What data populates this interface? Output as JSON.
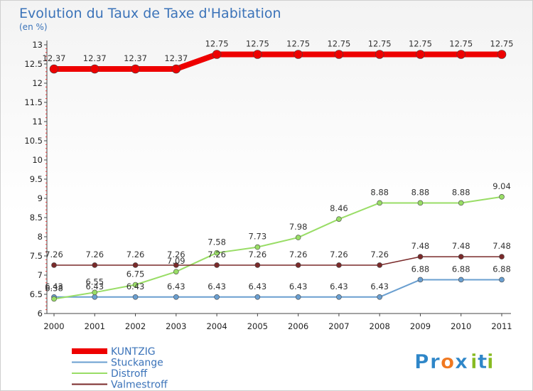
{
  "chart_data": {
    "type": "line",
    "title": "Evolution du Taux de Taxe d'Habitation",
    "subtitle": "(en %)",
    "xlabel": "",
    "ylabel": "",
    "x": [
      "2000",
      "2001",
      "2002",
      "2003",
      "2004",
      "2005",
      "2006",
      "2007",
      "2008",
      "2009",
      "2010",
      "2011"
    ],
    "ylim": [
      6,
      13
    ],
    "y_ticks": [
      "6",
      "6.5",
      "7",
      "7.5",
      "8",
      "8.5",
      "9",
      "9.5",
      "10",
      "10.5",
      "11",
      "11.5",
      "12",
      "12.5",
      "13"
    ],
    "grid": false,
    "legend_position": "bottom-left",
    "series": [
      {
        "name": "KUNTZIG",
        "color": "#ee0000",
        "values": [
          12.37,
          12.37,
          12.37,
          12.37,
          12.75,
          12.75,
          12.75,
          12.75,
          12.75,
          12.75,
          12.75,
          12.75
        ],
        "labels": [
          "12.37",
          "12.37",
          "12.37",
          "12.37",
          "12.75",
          "12.75",
          "12.75",
          "12.75",
          "12.75",
          "12.75",
          "12.75",
          "12.75"
        ]
      },
      {
        "name": "Stuckange",
        "color": "#6a9fd0",
        "values": [
          6.43,
          6.43,
          6.43,
          6.43,
          6.43,
          6.43,
          6.43,
          6.43,
          6.43,
          6.88,
          6.88,
          6.88
        ],
        "labels": [
          "6.43",
          "6.43",
          "6.43",
          "6.43",
          "6.43",
          "6.43",
          "6.43",
          "6.43",
          "6.43",
          "6.88",
          "6.88",
          "6.88"
        ]
      },
      {
        "name": "Distroff",
        "color": "#99dd66",
        "values": [
          6.38,
          6.55,
          6.75,
          7.09,
          7.58,
          7.73,
          7.98,
          8.46,
          8.88,
          8.88,
          8.88,
          9.04
        ],
        "labels": [
          "6.38",
          "6.55",
          "6.75",
          "7.09",
          "7.58",
          "7.73",
          "7.98",
          "8.46",
          "8.88",
          "8.88",
          "8.88",
          "9.04"
        ]
      },
      {
        "name": "Valmestroff",
        "color": "#7a2a2a",
        "values": [
          7.26,
          7.26,
          7.26,
          7.26,
          7.26,
          7.26,
          7.26,
          7.26,
          7.26,
          7.48,
          7.48,
          7.48
        ],
        "labels": [
          "7.26",
          "7.26",
          "7.26",
          "7.26",
          "7.26",
          "7.26",
          "7.26",
          "7.26",
          "7.26",
          "7.48",
          "7.48",
          "7.48"
        ]
      }
    ]
  },
  "logo": {
    "text": "Proxiti",
    "letters": [
      "P",
      "r",
      "o",
      "x",
      "i",
      "t",
      "i"
    ],
    "colors": [
      "#2e86c8",
      "#2e86c8",
      "#f07820",
      "#2e86c8",
      "#88bb22",
      "#2e86c8",
      "#88bb22"
    ]
  }
}
